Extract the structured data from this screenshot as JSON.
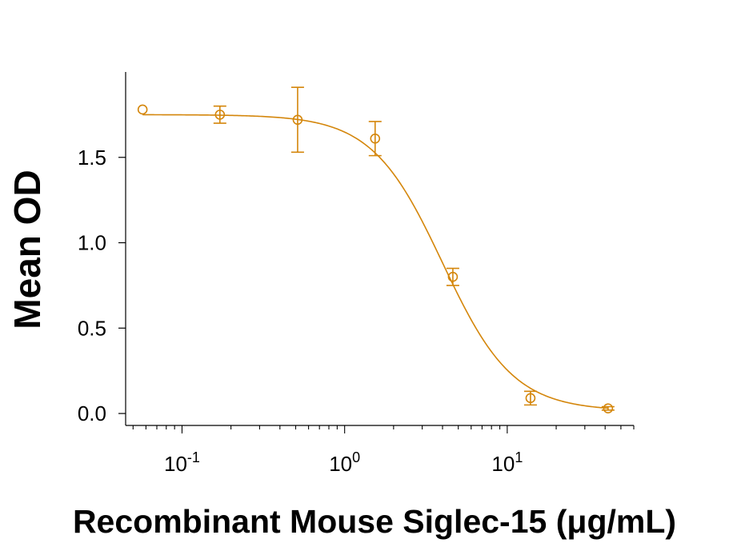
{
  "chart_data": {
    "type": "scatter",
    "xscale": "log",
    "xlabel": "Recombinant Mouse Siglec-15 (μg/mL)",
    "ylabel": "Mean OD",
    "xlim": [
      0.045,
      60
    ],
    "ylim": [
      -0.07,
      2.0
    ],
    "x_ticks": [
      {
        "value": 0.1,
        "base": "10",
        "exp": "-1"
      },
      {
        "value": 1,
        "base": "10",
        "exp": "0"
      },
      {
        "value": 10,
        "base": "10",
        "exp": "1"
      }
    ],
    "y_ticks": [
      {
        "value": 0,
        "label": "0.0"
      },
      {
        "value": 0.5,
        "label": "0.5"
      },
      {
        "value": 1.0,
        "label": "1.0"
      },
      {
        "value": 1.5,
        "label": "1.5"
      }
    ],
    "grid": false,
    "legend": "none",
    "color": "#d4860b",
    "series": [
      {
        "x": [
          0.0572,
          0.171,
          0.514,
          1.54,
          4.63,
          13.9,
          41.7
        ],
        "y": [
          1.78,
          1.75,
          1.72,
          1.61,
          0.8,
          0.09,
          0.03
        ],
        "err": [
          0.0,
          0.05,
          0.19,
          0.1,
          0.05,
          0.04,
          0.01
        ]
      }
    ],
    "fit": {
      "model": "4PL",
      "top": 1.75,
      "bottom": 0.015,
      "ec50": 4.0,
      "hill": 2.0
    }
  }
}
